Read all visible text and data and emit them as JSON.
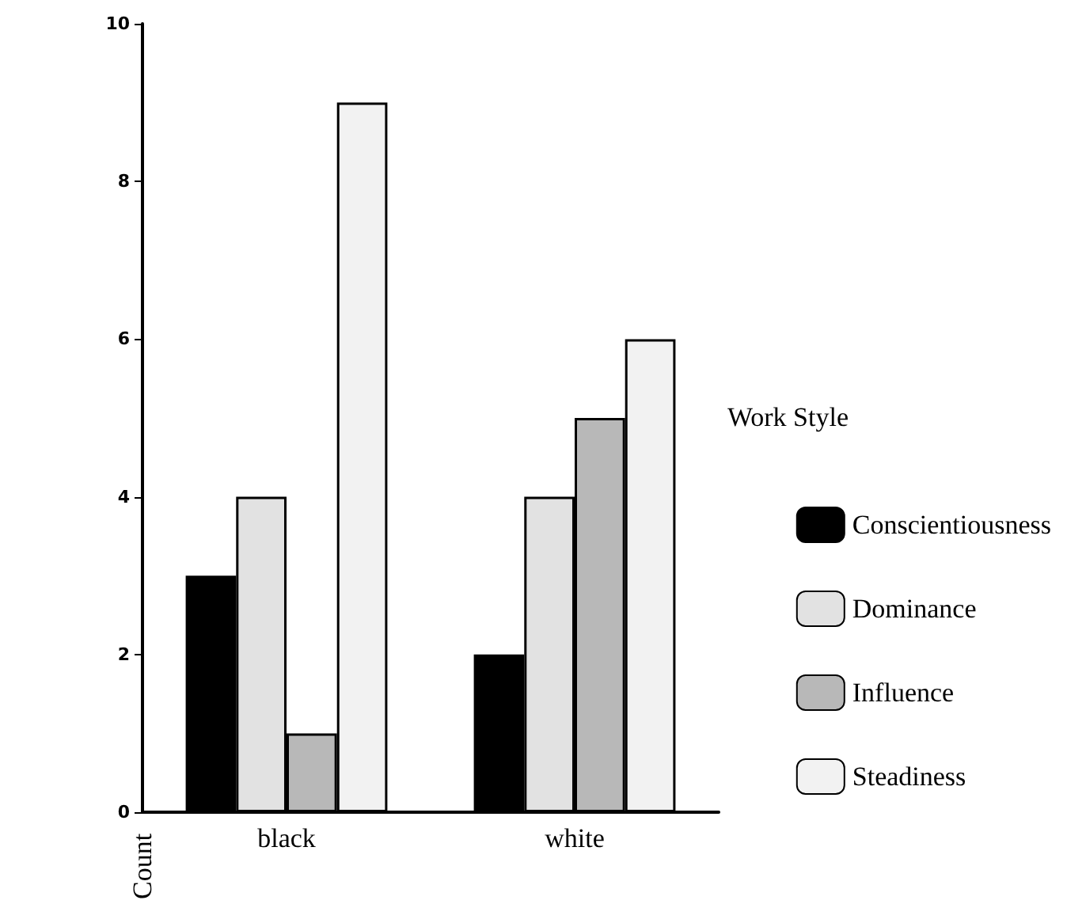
{
  "chart_data": {
    "type": "bar",
    "ylabel": "Count",
    "legend_title": "Work Style",
    "categories": [
      "black",
      "white"
    ],
    "series": [
      {
        "name": "Conscientiousness",
        "color": "#000000",
        "values": [
          3,
          2
        ]
      },
      {
        "name": "Dominance",
        "color": "#e2e2e2",
        "values": [
          4,
          4
        ]
      },
      {
        "name": "Influence",
        "color": "#b8b8b8",
        "values": [
          1,
          5
        ]
      },
      {
        "name": "Steadiness",
        "color": "#f2f2f2",
        "values": [
          9,
          6
        ]
      }
    ],
    "ylim": [
      0,
      10
    ],
    "yticks": [
      0,
      2,
      4,
      6,
      8,
      10
    ],
    "grid": false,
    "legend": "right"
  }
}
